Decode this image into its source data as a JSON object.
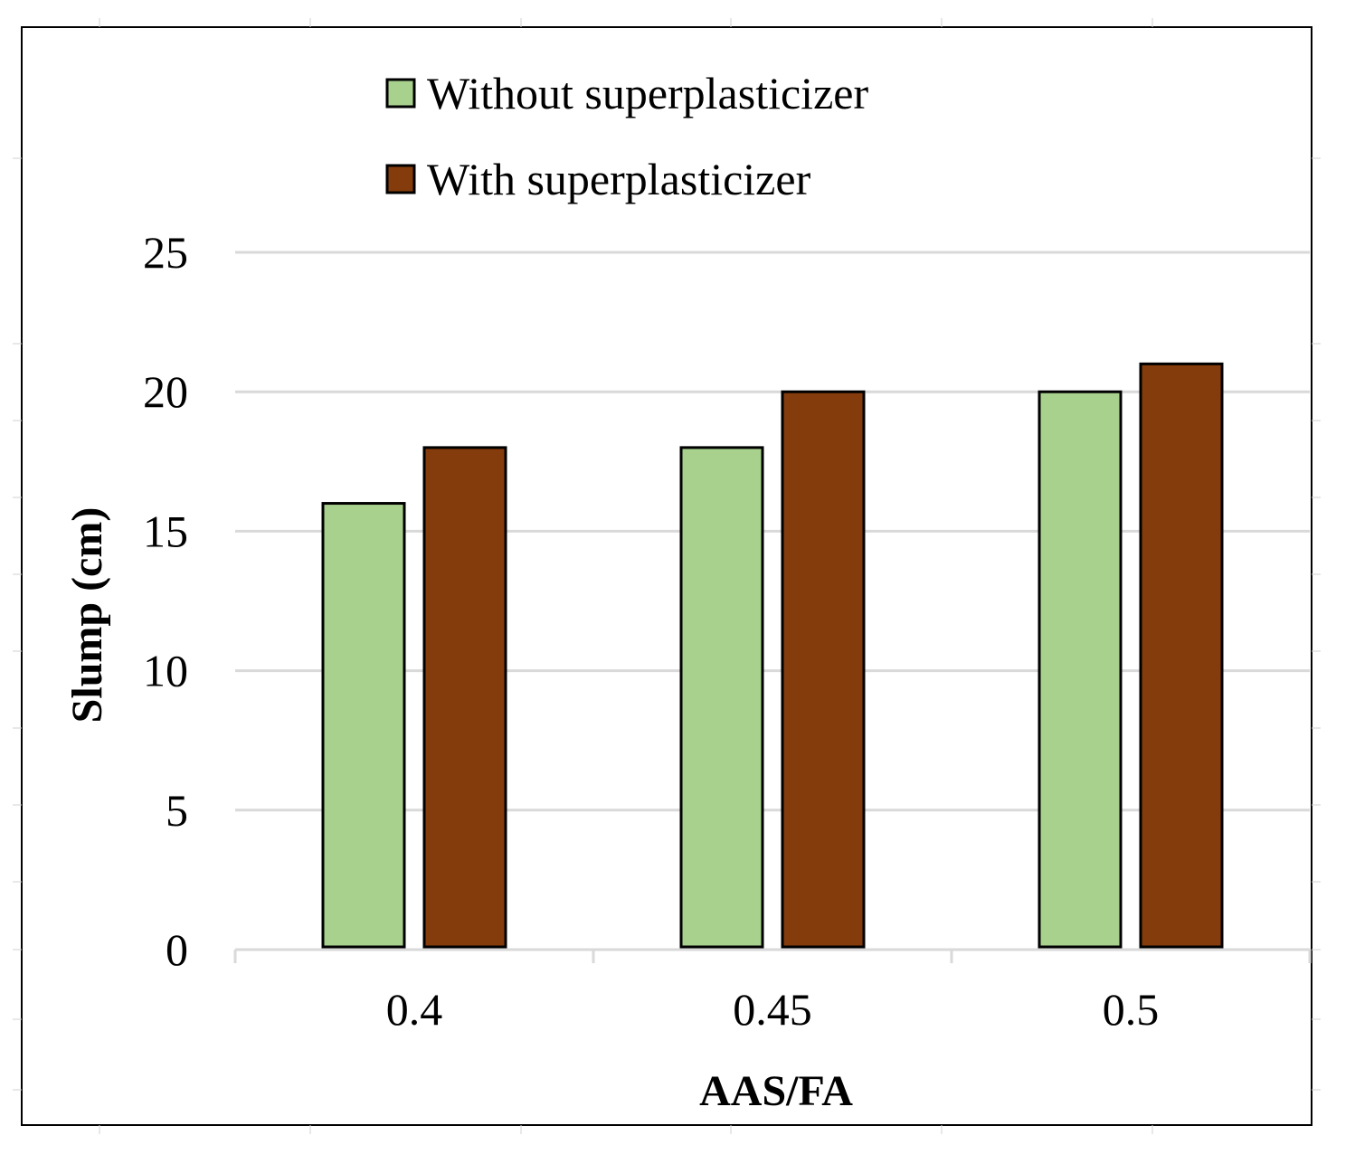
{
  "chart_data": {
    "type": "bar",
    "title": "",
    "xlabel": "AAS/FA",
    "ylabel": "Slump (cm)",
    "categories": [
      "0.4",
      "0.45",
      "0.5"
    ],
    "series": [
      {
        "name": "Without superplasticizer",
        "color": "#a9d18e",
        "values": [
          16,
          18,
          20
        ]
      },
      {
        "name": "With superplasticizer",
        "color": "#843c0c",
        "values": [
          18,
          20,
          21
        ]
      }
    ],
    "ylim": [
      0,
      25
    ],
    "yticks": [
      "0",
      "5",
      "10",
      "15",
      "20",
      "25"
    ],
    "grid": true,
    "legend_position": "top-center"
  }
}
